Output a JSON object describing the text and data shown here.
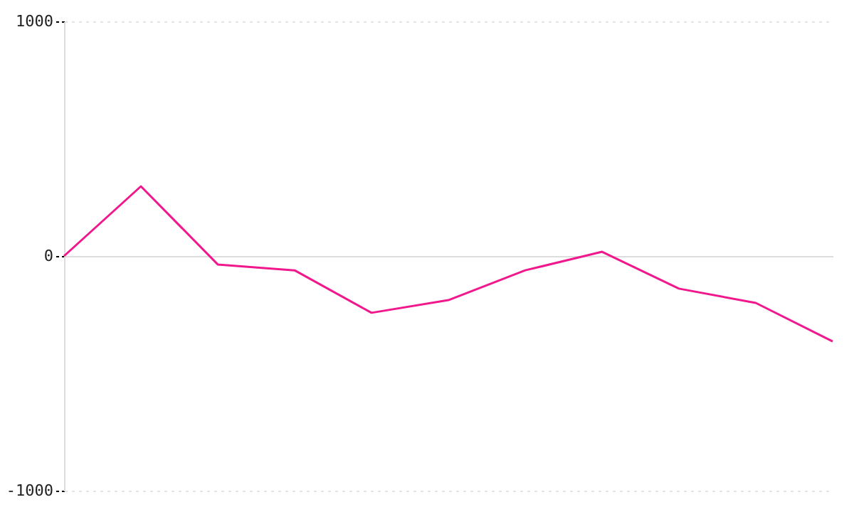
{
  "chart_data": {
    "type": "line",
    "categories": [
      null,
      null,
      null,
      null,
      null,
      null,
      null,
      null,
      null,
      null,
      null
    ],
    "series": [
      {
        "color": "#f0188c",
        "values": [
          0,
          297,
          -36,
          -61,
          -242,
          -188,
          -61,
          18,
          -139,
          -200,
          -364
        ]
      }
    ],
    "ylim": [
      -1000,
      1000
    ],
    "yticks": [
      -1000,
      0,
      1000
    ],
    "tick_labels": "y",
    "grid": "y",
    "marker": "none",
    "line_style": "solid"
  }
}
